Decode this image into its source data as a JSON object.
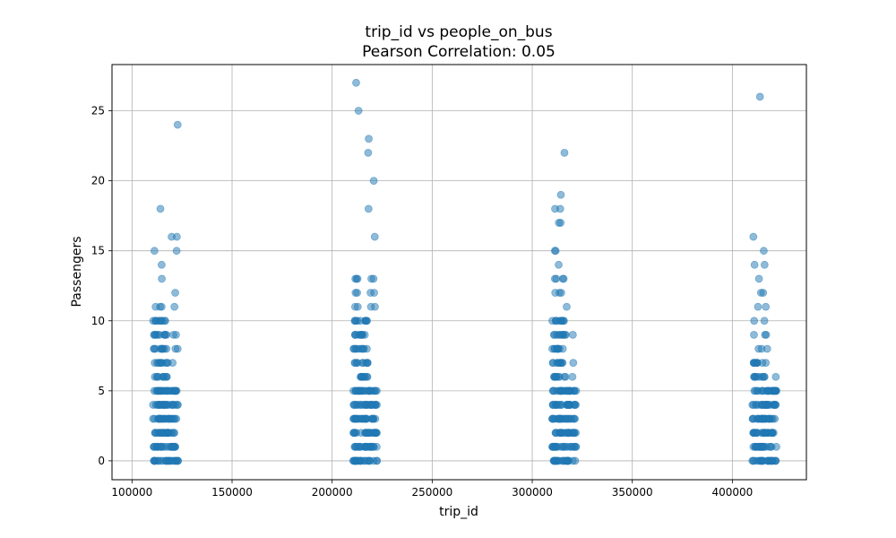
{
  "chart_data": {
    "type": "scatter",
    "title": "trip_id vs people_on_bus",
    "subtitle": "Pearson Correlation: 0.05",
    "xlabel": "trip_id",
    "ylabel": "Passengers",
    "xlim": [
      90000,
      437000
    ],
    "ylim": [
      -1.35,
      28.3
    ],
    "xticks": [
      100000,
      150000,
      200000,
      250000,
      300000,
      350000,
      400000
    ],
    "yticks": [
      0,
      5,
      10,
      15,
      20,
      25
    ],
    "grid": true,
    "legend": "none",
    "point_color": "#1f77b4",
    "point_alpha": 0.5,
    "clusters": [
      {
        "x_range": [
          110500,
          123000
        ],
        "dense_levels": [
          0,
          1,
          2,
          3,
          4,
          5,
          6,
          7,
          8,
          9,
          10
        ],
        "points": [
          [
            122800,
            24
          ],
          [
            114200,
            18
          ],
          [
            119800,
            16
          ],
          [
            122400,
            16
          ],
          [
            111200,
            15
          ],
          [
            122300,
            15
          ],
          [
            114800,
            14
          ],
          [
            114900,
            13
          ],
          [
            121600,
            12
          ],
          [
            111800,
            11
          ],
          [
            114000,
            11
          ],
          [
            114800,
            11
          ],
          [
            121200,
            11
          ],
          [
            120700,
            9
          ],
          [
            122000,
            9
          ],
          [
            121700,
            8
          ],
          [
            122800,
            8
          ],
          [
            120300,
            7
          ]
        ]
      },
      {
        "x_range": [
          210500,
          222500
        ],
        "dense_levels": [
          0,
          1,
          2,
          3,
          4,
          5,
          6,
          7,
          8,
          9,
          10
        ],
        "points": [
          [
            212000,
            27
          ],
          [
            213200,
            25
          ],
          [
            218300,
            23
          ],
          [
            218000,
            22
          ],
          [
            220800,
            20
          ],
          [
            218200,
            18
          ],
          [
            221300,
            16
          ],
          [
            211600,
            13
          ],
          [
            212200,
            13
          ],
          [
            212700,
            13
          ],
          [
            219600,
            13
          ],
          [
            220700,
            13
          ],
          [
            211700,
            12
          ],
          [
            212500,
            12
          ],
          [
            219200,
            12
          ],
          [
            221000,
            12
          ],
          [
            211500,
            11
          ],
          [
            212800,
            11
          ],
          [
            219400,
            11
          ],
          [
            221400,
            11
          ]
        ]
      },
      {
        "x_range": [
          310000,
          322000
        ],
        "dense_levels": [
          0,
          1,
          2,
          3,
          4,
          5,
          6,
          7,
          8,
          9,
          10
        ],
        "points": [
          [
            316100,
            22
          ],
          [
            314300,
            19
          ],
          [
            311400,
            18
          ],
          [
            314000,
            18
          ],
          [
            313300,
            17
          ],
          [
            314200,
            17
          ],
          [
            311300,
            15
          ],
          [
            311700,
            15
          ],
          [
            313200,
            14
          ],
          [
            311300,
            13
          ],
          [
            312000,
            13
          ],
          [
            315300,
            13
          ],
          [
            315700,
            13
          ],
          [
            311500,
            12
          ],
          [
            313600,
            12
          ],
          [
            314500,
            12
          ],
          [
            317200,
            11
          ],
          [
            320300,
            9
          ],
          [
            320500,
            7
          ],
          [
            320100,
            6
          ]
        ]
      },
      {
        "x_range": [
          410000,
          422500
        ],
        "dense_levels": [
          0,
          1,
          2,
          3,
          4,
          5,
          6,
          7
        ],
        "points": [
          [
            413800,
            26
          ],
          [
            410500,
            16
          ],
          [
            415700,
            15
          ],
          [
            411100,
            14
          ],
          [
            416100,
            14
          ],
          [
            413300,
            13
          ],
          [
            414300,
            12
          ],
          [
            415400,
            12
          ],
          [
            412800,
            11
          ],
          [
            416700,
            11
          ],
          [
            410900,
            10
          ],
          [
            416000,
            10
          ],
          [
            410800,
            9
          ],
          [
            416300,
            9
          ],
          [
            416900,
            9
          ],
          [
            413100,
            8
          ],
          [
            414600,
            8
          ],
          [
            417400,
            8
          ],
          [
            421700,
            6
          ],
          [
            421700,
            4
          ],
          [
            421200,
            3
          ]
        ]
      }
    ]
  }
}
